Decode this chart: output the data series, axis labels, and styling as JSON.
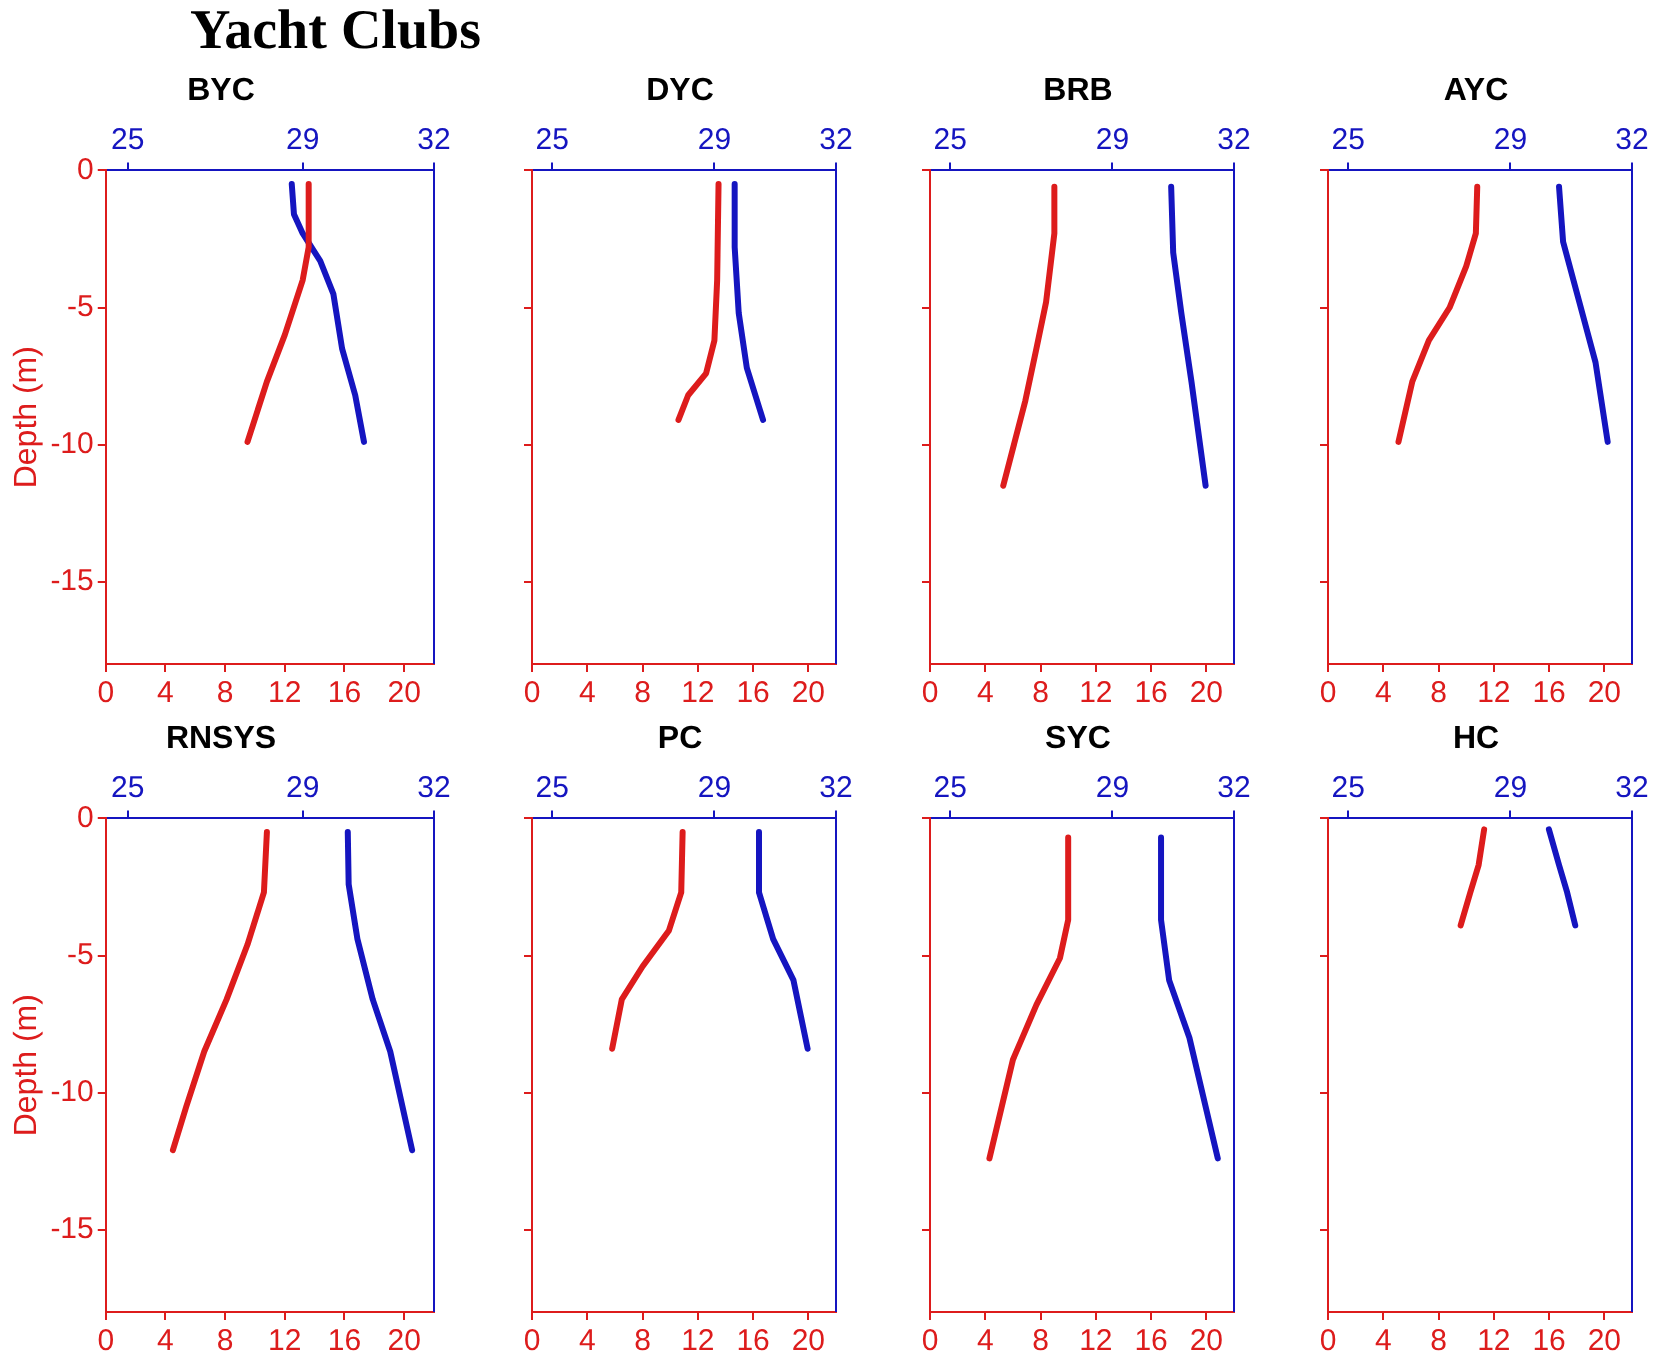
{
  "chart_data": [
    {
      "type": "line",
      "title": "BYC",
      "annotations": [
        "Yacht Clubs"
      ],
      "ylabel": "Depth (m)",
      "xlim": [
        0,
        22
      ],
      "xticks": [
        0,
        4,
        8,
        12,
        16,
        20
      ],
      "x2lim": [
        24.5,
        32
      ],
      "x2ticks": [
        25,
        29,
        32
      ],
      "ylim": [
        -18,
        0
      ],
      "yticks": [
        0,
        -5,
        -10,
        -15
      ],
      "marker": "none",
      "series": [
        {
          "color": "#dd1c1c",
          "x": [
            13.6,
            13.6,
            13.2,
            12.0,
            10.8,
            9.5
          ],
          "values": [
            -0.5,
            -2.8,
            -4,
            -6,
            -7.7,
            -9.9
          ]
        },
        {
          "color": "#1515c0",
          "axis": "x2",
          "x": [
            28.75,
            28.8,
            29.0,
            29.4,
            29.7,
            29.9,
            30.2,
            30.4
          ],
          "values": [
            -0.5,
            -1.6,
            -2.3,
            -3.3,
            -4.5,
            -6.5,
            -8.2,
            -9.9
          ]
        }
      ]
    },
    {
      "type": "line",
      "title": "DYC",
      "xlim": [
        0,
        22
      ],
      "xticks": [
        0,
        4,
        8,
        12,
        16,
        20
      ],
      "x2lim": [
        24.5,
        32
      ],
      "x2ticks": [
        25,
        29,
        32
      ],
      "ylim": [
        -18,
        0
      ],
      "yticks": [
        0,
        -5,
        -10,
        -15
      ],
      "tick_labels": "x",
      "marker": "none",
      "series": [
        {
          "color": "#dd1c1c",
          "x": [
            13.5,
            13.4,
            13.2,
            12.6,
            11.3,
            10.6
          ],
          "values": [
            -0.5,
            -4,
            -6.2,
            -7.4,
            -8.2,
            -9.1
          ]
        },
        {
          "color": "#1515c0",
          "axis": "x2",
          "x": [
            29.5,
            29.5,
            29.6,
            29.8,
            30.2
          ],
          "values": [
            -0.5,
            -2.8,
            -5.2,
            -7.2,
            -9.1
          ]
        }
      ]
    },
    {
      "type": "line",
      "title": "BRB",
      "xlim": [
        0,
        22
      ],
      "xticks": [
        0,
        4,
        8,
        12,
        16,
        20
      ],
      "x2lim": [
        24.5,
        32
      ],
      "x2ticks": [
        25,
        29,
        32
      ],
      "ylim": [
        -18,
        0
      ],
      "yticks": [
        0,
        -5,
        -10,
        -15
      ],
      "tick_labels": "x",
      "marker": "none",
      "series": [
        {
          "color": "#dd1c1c",
          "x": [
            9.0,
            9.0,
            8.4,
            7.7,
            6.9,
            5.3
          ],
          "values": [
            -0.6,
            -2.3,
            -4.8,
            -6.5,
            -8.4,
            -11.5
          ]
        },
        {
          "color": "#1515c0",
          "axis": "x2",
          "x": [
            30.45,
            30.5,
            30.7,
            30.95,
            31.3
          ],
          "values": [
            -0.6,
            -3.0,
            -5.2,
            -7.7,
            -11.5
          ]
        }
      ]
    },
    {
      "type": "line",
      "title": "AYC",
      "xlim": [
        0,
        22
      ],
      "xticks": [
        0,
        4,
        8,
        12,
        16,
        20
      ],
      "x2lim": [
        24.5,
        32
      ],
      "x2ticks": [
        25,
        29,
        32
      ],
      "ylim": [
        -18,
        0
      ],
      "yticks": [
        0,
        -5,
        -10,
        -15
      ],
      "tick_labels": "x",
      "marker": "none",
      "series": [
        {
          "color": "#dd1c1c",
          "x": [
            10.8,
            10.7,
            10.0,
            8.8,
            7.3,
            6.1,
            5.1
          ],
          "values": [
            -0.6,
            -2.3,
            -3.5,
            -5.0,
            -6.2,
            -7.7,
            -9.9
          ]
        },
        {
          "color": "#1515c0",
          "axis": "x2",
          "x": [
            30.2,
            30.3,
            30.7,
            31.1,
            31.4
          ],
          "values": [
            -0.6,
            -2.6,
            -4.8,
            -7.0,
            -9.9
          ]
        }
      ]
    },
    {
      "type": "line",
      "title": "RNSYS",
      "ylabel": "Depth (m)",
      "xlim": [
        0,
        22
      ],
      "xticks": [
        0,
        4,
        8,
        12,
        16,
        20
      ],
      "x2lim": [
        24.5,
        32
      ],
      "x2ticks": [
        25,
        29,
        32
      ],
      "ylim": [
        -18,
        0
      ],
      "yticks": [
        0,
        -5,
        -10,
        -15
      ],
      "marker": "none",
      "series": [
        {
          "color": "#dd1c1c",
          "x": [
            10.8,
            10.6,
            9.5,
            8.1,
            6.6,
            5.4,
            4.5
          ],
          "values": [
            -0.5,
            -2.7,
            -4.6,
            -6.6,
            -8.5,
            -10.5,
            -12.1
          ]
        },
        {
          "color": "#1515c0",
          "axis": "x2",
          "x": [
            30.03,
            30.05,
            30.25,
            30.6,
            31.0,
            31.5
          ],
          "values": [
            -0.5,
            -2.4,
            -4.4,
            -6.6,
            -8.5,
            -12.1
          ]
        }
      ]
    },
    {
      "type": "line",
      "title": "PC",
      "xlim": [
        0,
        22
      ],
      "xticks": [
        0,
        4,
        8,
        12,
        16,
        20
      ],
      "x2lim": [
        24.5,
        32
      ],
      "x2ticks": [
        25,
        29,
        32
      ],
      "ylim": [
        -18,
        0
      ],
      "yticks": [
        0,
        -5,
        -10,
        -15
      ],
      "tick_labels": "x",
      "marker": "none",
      "series": [
        {
          "color": "#dd1c1c",
          "x": [
            10.9,
            10.8,
            9.9,
            8.0,
            6.5,
            5.8
          ],
          "values": [
            -0.5,
            -2.7,
            -4.1,
            -5.4,
            -6.6,
            -8.4
          ]
        },
        {
          "color": "#1515c0",
          "axis": "x2",
          "x": [
            30.1,
            30.1,
            30.45,
            30.95,
            31.3
          ],
          "values": [
            -0.5,
            -2.7,
            -4.4,
            -5.9,
            -8.4
          ]
        }
      ]
    },
    {
      "type": "line",
      "title": "SYC",
      "xlim": [
        0,
        22
      ],
      "xticks": [
        0,
        4,
        8,
        12,
        16,
        20
      ],
      "x2lim": [
        24.5,
        32
      ],
      "x2ticks": [
        25,
        29,
        32
      ],
      "ylim": [
        -18,
        0
      ],
      "yticks": [
        0,
        -5,
        -10,
        -15
      ],
      "tick_labels": "x",
      "marker": "none",
      "series": [
        {
          "color": "#dd1c1c",
          "x": [
            10.0,
            10.0,
            9.4,
            7.7,
            6.0,
            4.3
          ],
          "values": [
            -0.7,
            -3.7,
            -5.1,
            -6.8,
            -8.8,
            -12.4
          ]
        },
        {
          "color": "#1515c0",
          "axis": "x2",
          "x": [
            30.2,
            30.2,
            30.4,
            30.9,
            31.6
          ],
          "values": [
            -0.7,
            -3.7,
            -5.9,
            -8.0,
            -12.4
          ]
        }
      ]
    },
    {
      "type": "line",
      "title": "HC",
      "xlim": [
        0,
        22
      ],
      "xticks": [
        0,
        4,
        8,
        12,
        16,
        20
      ],
      "x2lim": [
        24.5,
        32
      ],
      "x2ticks": [
        25,
        29,
        32
      ],
      "ylim": [
        -18,
        0
      ],
      "yticks": [
        0,
        -5,
        -10,
        -15
      ],
      "tick_labels": "x",
      "marker": "none",
      "series": [
        {
          "color": "#dd1c1c",
          "x": [
            11.3,
            10.9,
            10.3,
            9.6
          ],
          "values": [
            -0.4,
            -1.7,
            -2.7,
            -3.9
          ]
        },
        {
          "color": "#1515c0",
          "axis": "x2",
          "x": [
            29.95,
            30.2,
            30.4,
            30.6
          ],
          "values": [
            -0.4,
            -1.7,
            -2.7,
            -3.9
          ]
        }
      ]
    }
  ]
}
